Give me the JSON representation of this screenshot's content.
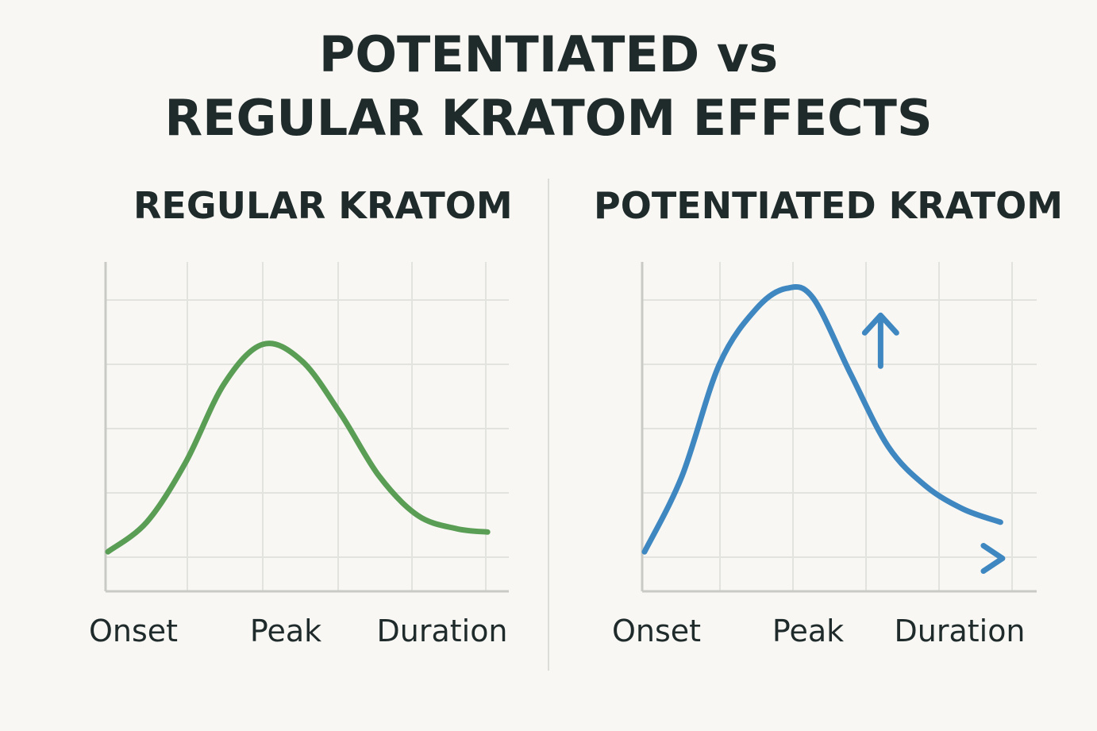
{
  "title": {
    "line1": "POTENTIATED vs",
    "line2": "REGULAR KRATOM EFFECTS"
  },
  "colors": {
    "background": "#f8f7f4",
    "text": "#1f2a2a",
    "grid": "#e2e2de",
    "axis": "#c9c9c5",
    "regular": "#5a9e55",
    "potentiated": "#3f87c0"
  },
  "chart_data": [
    {
      "type": "line",
      "title": "REGULAR KRATOM",
      "categories": [
        "Onset",
        "Peak",
        "Duration"
      ],
      "xlim": [
        0,
        1
      ],
      "ylim": [
        0,
        1
      ],
      "grid": true,
      "series": [
        {
          "color": "#5a9e55",
          "x": [
            0.0,
            0.1,
            0.2,
            0.3,
            0.4,
            0.5,
            0.6,
            0.7,
            0.8,
            0.9,
            0.98
          ],
          "y": [
            0.12,
            0.21,
            0.39,
            0.63,
            0.75,
            0.7,
            0.54,
            0.35,
            0.23,
            0.19,
            0.18
          ]
        }
      ]
    },
    {
      "type": "line",
      "title": "POTENTIATED KRATOM",
      "categories": [
        "Onset",
        "Peak",
        "Duration"
      ],
      "xlim": [
        0,
        1
      ],
      "ylim": [
        0,
        1
      ],
      "grid": true,
      "series": [
        {
          "color": "#3f87c0",
          "x": [
            0.0,
            0.1,
            0.2,
            0.3,
            0.38,
            0.45,
            0.55,
            0.65,
            0.75,
            0.85,
            0.95
          ],
          "y": [
            0.12,
            0.35,
            0.69,
            0.86,
            0.92,
            0.89,
            0.66,
            0.44,
            0.32,
            0.25,
            0.21
          ]
        }
      ],
      "annotations": [
        {
          "name": "up-arrow-icon",
          "x": 0.63,
          "y": 0.78
        },
        {
          "name": "right-chevron-icon",
          "x": 0.93,
          "y": 0.1
        }
      ]
    }
  ]
}
